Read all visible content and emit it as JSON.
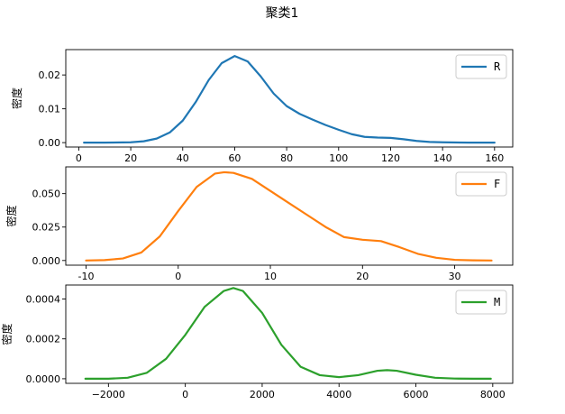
{
  "figure": {
    "title": "聚类1"
  },
  "chart_data": [
    {
      "type": "line",
      "title": "",
      "xlabel": "",
      "ylabel": "密度",
      "xlim": [
        -5,
        167
      ],
      "ylim": [
        -0.0013,
        0.0275
      ],
      "xticks": [
        0,
        20,
        40,
        60,
        80,
        100,
        120,
        140,
        160
      ],
      "xtick_labels": [
        "0",
        "20",
        "40",
        "60",
        "80",
        "100",
        "120",
        "140",
        "160"
      ],
      "yticks": [
        0.0,
        0.01,
        0.02
      ],
      "ytick_labels": [
        "0.00",
        "0.01",
        "0.02"
      ],
      "legend": {
        "position": "top-right",
        "entries": [
          "R"
        ]
      },
      "series": [
        {
          "name": "R",
          "color": "#1f77b4",
          "x": [
            2,
            10,
            20,
            25,
            30,
            35,
            40,
            45,
            50,
            55,
            60,
            65,
            70,
            75,
            80,
            85,
            90,
            95,
            100,
            105,
            110,
            115,
            120,
            125,
            130,
            135,
            140,
            150,
            160
          ],
          "y": [
            0.0,
            0.0,
            0.0001,
            0.0004,
            0.0012,
            0.003,
            0.0065,
            0.012,
            0.0185,
            0.0235,
            0.0256,
            0.024,
            0.0196,
            0.0145,
            0.0108,
            0.0085,
            0.0068,
            0.0052,
            0.0038,
            0.0025,
            0.0017,
            0.0015,
            0.0014,
            0.001,
            0.0005,
            0.0002,
            0.0001,
            0.0,
            0.0
          ]
        }
      ]
    },
    {
      "type": "line",
      "title": "",
      "xlabel": "",
      "ylabel": "密度",
      "xlim": [
        -12.2,
        36.3
      ],
      "ylim": [
        -0.0035,
        0.07
      ],
      "xticks": [
        -10,
        0,
        10,
        20,
        30
      ],
      "xtick_labels": [
        "-10",
        "0",
        "10",
        "20",
        "30"
      ],
      "yticks": [
        0.0,
        0.025,
        0.05
      ],
      "ytick_labels": [
        "0.000",
        "0.025",
        "0.050"
      ],
      "legend": {
        "position": "top-right",
        "entries": [
          "F"
        ]
      },
      "series": [
        {
          "name": "F",
          "color": "#ff7f0e",
          "x": [
            -10,
            -8,
            -6,
            -4,
            -2,
            0,
            2,
            4,
            5,
            6,
            8,
            10,
            12,
            14,
            16,
            18,
            20,
            22,
            24,
            26,
            28,
            30,
            32,
            34
          ],
          "y": [
            0.0,
            0.0003,
            0.0015,
            0.006,
            0.018,
            0.037,
            0.055,
            0.065,
            0.066,
            0.0655,
            0.061,
            0.052,
            0.043,
            0.034,
            0.025,
            0.0175,
            0.0155,
            0.0145,
            0.01,
            0.005,
            0.002,
            0.0005,
            0.0001,
            0.0
          ]
        }
      ]
    },
    {
      "type": "line",
      "title": "",
      "xlabel": "",
      "ylabel": "密度",
      "xlim": [
        -3110,
        8520
      ],
      "ylim": [
        -2.3e-05,
        0.00047
      ],
      "xticks": [
        -2000,
        0,
        2000,
        4000,
        6000,
        8000
      ],
      "xtick_labels": [
        "−2000",
        "0",
        "2000",
        "4000",
        "6000",
        "8000"
      ],
      "yticks": [
        0.0,
        0.0002,
        0.0004
      ],
      "ytick_labels": [
        "0.0000",
        "0.0002",
        "0.0004"
      ],
      "legend": {
        "position": "top-right",
        "entries": [
          "M"
        ]
      },
      "series": [
        {
          "name": "M",
          "color": "#2ca02c",
          "x": [
            -2600,
            -2000,
            -1500,
            -1000,
            -500,
            0,
            500,
            1000,
            1250,
            1500,
            2000,
            2500,
            3000,
            3500,
            4000,
            4500,
            5000,
            5250,
            5500,
            6000,
            6500,
            7000,
            7500,
            7950
          ],
          "y": [
            0.0,
            0.0,
            5e-06,
            3e-05,
            0.0001,
            0.00022,
            0.00036,
            0.00044,
            0.000455,
            0.00044,
            0.00033,
            0.00017,
            6e-05,
            1.8e-05,
            8e-06,
            1.8e-05,
            4e-05,
            4.3e-05,
            4e-05,
            2e-05,
            5e-06,
            1e-06,
            0.0,
            0.0
          ]
        }
      ]
    }
  ]
}
